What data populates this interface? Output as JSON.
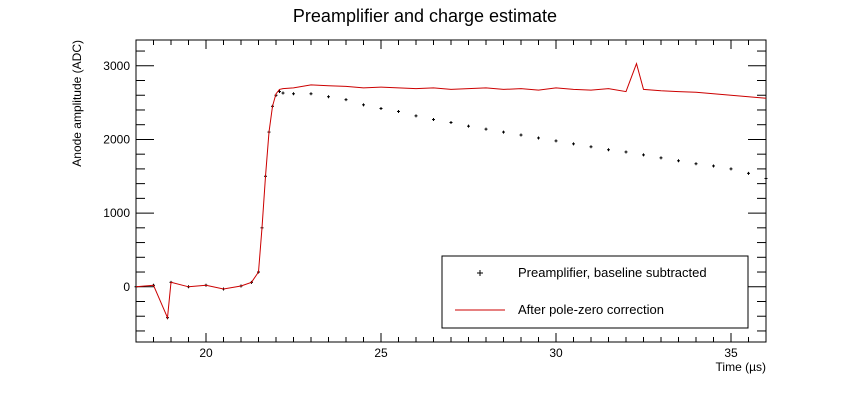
{
  "chart_data": {
    "type": "scatter",
    "title": "Preamplifier and charge estimate",
    "xlabel": "Time (µs)",
    "ylabel": "Anode amplitude (ADC)",
    "xlim": [
      18.0,
      36.0
    ],
    "ylim": [
      -750,
      3350
    ],
    "x_ticks": [
      20,
      25,
      30,
      35
    ],
    "x_tick_labels": [
      "20",
      "25",
      "30",
      "35"
    ],
    "y_ticks": [
      0,
      1000,
      2000,
      3000
    ],
    "y_tick_labels": [
      "0",
      "1000",
      "2000",
      "3000"
    ],
    "grid": false,
    "legend_position": "bottom-right",
    "series": [
      {
        "name": "Preamplifier, baseline subtracted",
        "style": "markers",
        "color": "#000000",
        "x": [
          18.0,
          18.5,
          18.9,
          19.0,
          19.5,
          20.0,
          20.5,
          21.0,
          21.3,
          21.5,
          21.6,
          21.7,
          21.8,
          21.9,
          22.0,
          22.1,
          22.2,
          22.5,
          23.0,
          23.5,
          24.0,
          24.5,
          25.0,
          25.5,
          26.0,
          26.5,
          27.0,
          27.5,
          28.0,
          28.5,
          29.0,
          29.5,
          30.0,
          30.5,
          31.0,
          31.5,
          32.0,
          32.5,
          33.0,
          33.5,
          34.0,
          34.5,
          35.0,
          35.5,
          36.0
        ],
        "y": [
          0,
          20,
          -420,
          60,
          0,
          20,
          -30,
          10,
          60,
          200,
          800,
          1500,
          2100,
          2450,
          2600,
          2650,
          2630,
          2620,
          2620,
          2580,
          2540,
          2470,
          2420,
          2380,
          2320,
          2270,
          2230,
          2180,
          2140,
          2100,
          2060,
          2020,
          1980,
          1940,
          1900,
          1860,
          1830,
          1790,
          1750,
          1710,
          1670,
          1640,
          1600,
          1540,
          1470
        ]
      },
      {
        "name": "After pole-zero correction",
        "style": "line",
        "color": "#cc0000",
        "x": [
          18.0,
          18.5,
          18.9,
          19.0,
          19.5,
          20.0,
          20.5,
          21.0,
          21.3,
          21.5,
          21.6,
          21.7,
          21.8,
          21.9,
          22.0,
          22.1,
          22.2,
          22.5,
          23.0,
          23.5,
          24.0,
          24.5,
          25.0,
          25.5,
          26.0,
          26.5,
          27.0,
          27.5,
          28.0,
          28.5,
          29.0,
          29.5,
          30.0,
          30.5,
          31.0,
          31.5,
          32.0,
          32.3,
          32.5,
          33.0,
          33.5,
          34.0,
          34.5,
          35.0,
          35.5,
          36.0
        ],
        "y": [
          0,
          20,
          -420,
          60,
          0,
          20,
          -30,
          10,
          60,
          200,
          800,
          1500,
          2100,
          2450,
          2620,
          2680,
          2690,
          2700,
          2740,
          2730,
          2720,
          2700,
          2710,
          2700,
          2690,
          2700,
          2680,
          2690,
          2700,
          2680,
          2690,
          2670,
          2700,
          2680,
          2670,
          2690,
          2650,
          3030,
          2680,
          2660,
          2650,
          2640,
          2620,
          2600,
          2580,
          2560
        ]
      }
    ]
  }
}
